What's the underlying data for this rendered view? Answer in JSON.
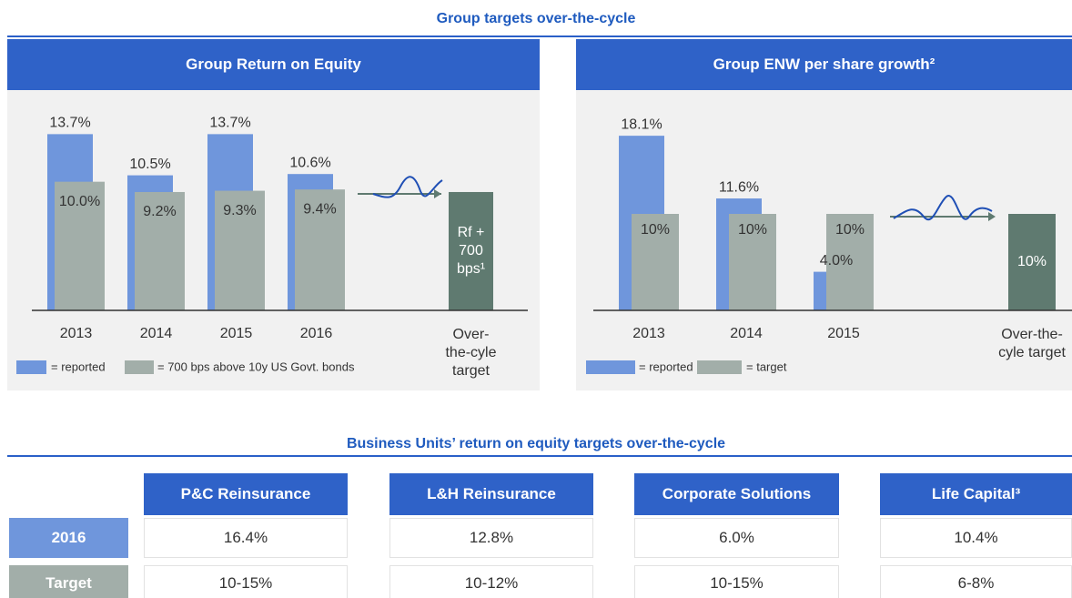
{
  "heading": "Group targets over-the-cycle",
  "chart_data": [
    {
      "type": "bar",
      "title": "Group Return on Equity",
      "categories": [
        "2013",
        "2014",
        "2015",
        "2016",
        "Over-the-cyle target"
      ],
      "series": [
        {
          "name": "= reported",
          "color": "#6f96dc",
          "values": [
            13.7,
            10.5,
            13.7,
            10.6,
            null
          ],
          "value_labels": [
            "13.7%",
            "10.5%",
            "13.7%",
            "10.6%",
            null
          ]
        },
        {
          "name": "= 700 bps above 10y US Govt. bonds",
          "color": "#a2aea9",
          "values": [
            10.0,
            9.2,
            9.3,
            9.4,
            null
          ],
          "value_labels": [
            "10.0%",
            "9.2%",
            "9.3%",
            "9.4%",
            null
          ]
        }
      ],
      "cycle_target": {
        "value": 9.2,
        "label": "Rf + 700 bps¹",
        "color": "#5f7a70"
      },
      "ylim": [
        0,
        15
      ]
    },
    {
      "type": "bar",
      "title": "Group ENW per share growth²",
      "categories": [
        "2013",
        "2014",
        "2015",
        "Over-the-cyle target"
      ],
      "series": [
        {
          "name": "= reported",
          "color": "#6f96dc",
          "values": [
            18.1,
            11.6,
            4.0,
            null
          ],
          "value_labels": [
            "18.1%",
            "11.6%",
            "4.0%",
            null
          ]
        },
        {
          "name": "= target",
          "color": "#a2aea9",
          "values": [
            10,
            10,
            10,
            null
          ],
          "value_labels": [
            "10%",
            "10%",
            "10%",
            null
          ]
        }
      ],
      "cycle_target": {
        "value": 10,
        "label": "10%",
        "color": "#5f7a70"
      },
      "ylim": [
        0,
        20
      ]
    }
  ],
  "bu": {
    "heading": "Business Units’ return on equity targets over-the-cycle",
    "columns": [
      "P&C Reinsurance",
      "L&H Reinsurance",
      "Corporate Solutions",
      "Life Capital³"
    ],
    "rows": [
      {
        "label": "2016",
        "cells": [
          "16.4%",
          "12.8%",
          "6.0%",
          "10.4%"
        ]
      },
      {
        "label": "Target",
        "cells": [
          "10-15%",
          "10-12%",
          "10-15%",
          "6-8%"
        ]
      }
    ]
  }
}
